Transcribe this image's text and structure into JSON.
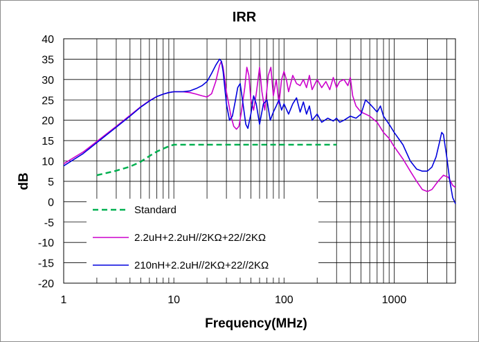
{
  "chart_data": {
    "type": "line",
    "title": "IRR",
    "xlabel": "Frequency(MHz)",
    "ylabel": "dB",
    "xscale": "log",
    "xlim": [
      1,
      3600
    ],
    "ylim": [
      -20,
      40
    ],
    "grid": true,
    "x_ticks": [
      "1",
      "10",
      "100",
      "1000"
    ],
    "y_ticks": [
      "40",
      "35",
      "30",
      "25",
      "20",
      "15",
      "10",
      "5",
      "0",
      "-5",
      "-10",
      "-15",
      "-20"
    ],
    "legend_position": "bottom-left",
    "series": [
      {
        "name": "Standard",
        "color": "#00b050",
        "style": "dashed",
        "points": [
          [
            2,
            6.5
          ],
          [
            3,
            7.6
          ],
          [
            4,
            8.6
          ],
          [
            5,
            9.8
          ],
          [
            6,
            11.2
          ],
          [
            7,
            12.3
          ],
          [
            8,
            13
          ],
          [
            9,
            13.6
          ],
          [
            10,
            14
          ],
          [
            20,
            14
          ],
          [
            50,
            14
          ],
          [
            100,
            14
          ],
          [
            200,
            14
          ],
          [
            300,
            14
          ]
        ]
      },
      {
        "name": "2.2uH+2.2uH//2KΩ+22//2KΩ",
        "color": "#cc00cc",
        "style": "solid",
        "points": [
          [
            1,
            9.3
          ],
          [
            1.5,
            12.2
          ],
          [
            2,
            14.8
          ],
          [
            3,
            18.5
          ],
          [
            4,
            21.2
          ],
          [
            5,
            23.3
          ],
          [
            6,
            24.8
          ],
          [
            7,
            25.8
          ],
          [
            8,
            26.4
          ],
          [
            9,
            26.8
          ],
          [
            10,
            27
          ],
          [
            12,
            27
          ],
          [
            14,
            26.8
          ],
          [
            16,
            26.4
          ],
          [
            18,
            26
          ],
          [
            20,
            25.7
          ],
          [
            22,
            26.5
          ],
          [
            24,
            29.5
          ],
          [
            26,
            33.5
          ],
          [
            27,
            34.5
          ],
          [
            28,
            33
          ],
          [
            30,
            27
          ],
          [
            33,
            21
          ],
          [
            35,
            18.5
          ],
          [
            37,
            17.8
          ],
          [
            39,
            18.5
          ],
          [
            41,
            22
          ],
          [
            44,
            28
          ],
          [
            46,
            33
          ],
          [
            48,
            31
          ],
          [
            50,
            25
          ],
          [
            53,
            22.5
          ],
          [
            56,
            26.5
          ],
          [
            60,
            33
          ],
          [
            63,
            27
          ],
          [
            67,
            22.5
          ],
          [
            72,
            31
          ],
          [
            76,
            33
          ],
          [
            80,
            26
          ],
          [
            85,
            30
          ],
          [
            90,
            24
          ],
          [
            95,
            30
          ],
          [
            100,
            32
          ],
          [
            105,
            30
          ],
          [
            110,
            27
          ],
          [
            120,
            31
          ],
          [
            130,
            29
          ],
          [
            140,
            28.5
          ],
          [
            150,
            30
          ],
          [
            160,
            28
          ],
          [
            170,
            31
          ],
          [
            180,
            27.5
          ],
          [
            200,
            30
          ],
          [
            220,
            28
          ],
          [
            240,
            29.5
          ],
          [
            260,
            27.5
          ],
          [
            280,
            30.5
          ],
          [
            300,
            28
          ],
          [
            320,
            29.5
          ],
          [
            350,
            30
          ],
          [
            380,
            28.5
          ],
          [
            400,
            30.5
          ],
          [
            420,
            26
          ],
          [
            450,
            23.5
          ],
          [
            500,
            22
          ],
          [
            550,
            21.5
          ],
          [
            600,
            21
          ],
          [
            700,
            19.5
          ],
          [
            800,
            17
          ],
          [
            900,
            15.5
          ],
          [
            1000,
            13.5
          ],
          [
            1200,
            10.5
          ],
          [
            1400,
            7.5
          ],
          [
            1600,
            5
          ],
          [
            1800,
            3
          ],
          [
            2000,
            2.5
          ],
          [
            2200,
            3
          ],
          [
            2500,
            5
          ],
          [
            2800,
            6.5
          ],
          [
            3100,
            6
          ],
          [
            3400,
            4
          ],
          [
            3600,
            3.5
          ]
        ]
      },
      {
        "name": "210nH+2.2uH//2KΩ+22//2KΩ",
        "color": "#0000dd",
        "style": "solid",
        "points": [
          [
            1,
            8.8
          ],
          [
            1.5,
            11.8
          ],
          [
            2,
            14.5
          ],
          [
            3,
            18.3
          ],
          [
            4,
            21
          ],
          [
            5,
            23.2
          ],
          [
            6,
            24.7
          ],
          [
            7,
            25.8
          ],
          [
            8,
            26.4
          ],
          [
            9,
            26.8
          ],
          [
            10,
            27
          ],
          [
            12,
            27
          ],
          [
            14,
            27.2
          ],
          [
            16,
            27.8
          ],
          [
            18,
            28.5
          ],
          [
            20,
            29.5
          ],
          [
            22,
            31.5
          ],
          [
            24,
            33.5
          ],
          [
            26,
            35
          ],
          [
            27,
            34.5
          ],
          [
            28,
            32
          ],
          [
            30,
            24
          ],
          [
            32,
            20
          ],
          [
            34,
            21
          ],
          [
            36,
            24.5
          ],
          [
            38,
            28
          ],
          [
            40,
            29
          ],
          [
            42,
            25
          ],
          [
            45,
            19
          ],
          [
            47,
            18
          ],
          [
            50,
            21.5
          ],
          [
            53,
            26
          ],
          [
            56,
            24
          ],
          [
            60,
            19
          ],
          [
            65,
            24
          ],
          [
            70,
            25
          ],
          [
            75,
            20
          ],
          [
            80,
            22
          ],
          [
            85,
            23.5
          ],
          [
            90,
            25
          ],
          [
            95,
            22.5
          ],
          [
            100,
            24
          ],
          [
            110,
            21.5
          ],
          [
            120,
            24
          ],
          [
            130,
            25.5
          ],
          [
            140,
            22
          ],
          [
            150,
            24.5
          ],
          [
            160,
            21.5
          ],
          [
            170,
            23.5
          ],
          [
            180,
            20
          ],
          [
            200,
            21.5
          ],
          [
            220,
            19.5
          ],
          [
            250,
            20.5
          ],
          [
            280,
            19.8
          ],
          [
            300,
            20.5
          ],
          [
            320,
            19.5
          ],
          [
            350,
            20
          ],
          [
            400,
            21
          ],
          [
            450,
            20.5
          ],
          [
            500,
            21.5
          ],
          [
            550,
            25
          ],
          [
            600,
            24
          ],
          [
            650,
            23
          ],
          [
            700,
            22
          ],
          [
            750,
            23.5
          ],
          [
            800,
            21
          ],
          [
            900,
            19
          ],
          [
            1000,
            17
          ],
          [
            1200,
            14
          ],
          [
            1400,
            10
          ],
          [
            1600,
            8
          ],
          [
            1800,
            7.5
          ],
          [
            2000,
            7.5
          ],
          [
            2200,
            8.5
          ],
          [
            2400,
            11
          ],
          [
            2600,
            15
          ],
          [
            2700,
            17
          ],
          [
            2800,
            16.5
          ],
          [
            3000,
            11
          ],
          [
            3200,
            5
          ],
          [
            3400,
            1
          ],
          [
            3600,
            -0.5
          ]
        ]
      }
    ]
  }
}
